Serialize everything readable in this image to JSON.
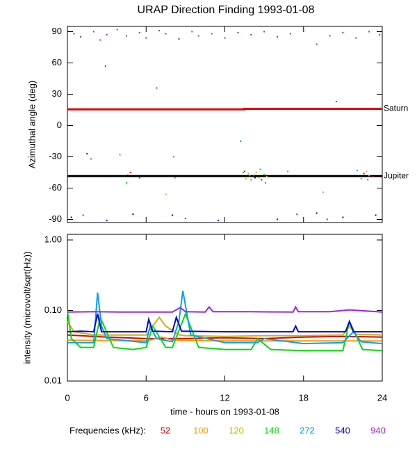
{
  "title": "URAP Direction Finding  1993-01-08",
  "chart_data": [
    {
      "type": "scatter",
      "ylabel": "Azimuthal angle (deg)",
      "xlim": [
        0,
        24
      ],
      "xticks": [
        0,
        6,
        12,
        18,
        24
      ],
      "ylim": [
        -93,
        95
      ],
      "yticks": [
        -90,
        -60,
        -30,
        0,
        30,
        60,
        90
      ],
      "reference_lines": [
        {
          "name": "Saturn",
          "color": "#e00000",
          "x": [
            0,
            13.5,
            13.5,
            24
          ],
          "values": [
            15.5,
            15.5,
            16,
            16
          ]
        },
        {
          "name": "Jupiter",
          "color": "#000000",
          "x": [
            0,
            24
          ],
          "values": [
            -48.5,
            -48.5
          ]
        }
      ],
      "series": [
        {
          "color": "#e00000",
          "x": [
            4.8,
            5.5,
            13.5,
            14.2,
            14.8,
            22.6,
            23.3
          ],
          "values": [
            -45,
            -50,
            -44,
            -48,
            -52,
            -46,
            -49
          ]
        },
        {
          "color": "#ff9900",
          "x": [
            7.5,
            13.8,
            14.6,
            19.5,
            23
          ],
          "values": [
            -66,
            -46,
            -50,
            -64,
            -48
          ]
        },
        {
          "color": "#d4b000",
          "x": [
            4.6,
            13.6,
            14.4,
            15.2,
            22.8
          ],
          "values": [
            -47,
            -51,
            -45,
            -49,
            -44
          ]
        },
        {
          "color": "#00e000",
          "x": [
            1.8,
            4.0,
            4.5,
            8.2,
            13.4,
            14,
            15,
            16.8,
            22.4
          ],
          "values": [
            -32,
            -28,
            -55,
            -50,
            -45,
            -52,
            -47,
            -44,
            -51
          ]
        },
        {
          "color": "#00a0ff",
          "x": [
            8.1,
            13.2,
            13.9,
            14.7,
            15.1,
            22.1,
            22.9
          ],
          "values": [
            -30,
            -15,
            -48,
            -42,
            -55,
            -43,
            -52
          ]
        },
        {
          "color": "#0000e0",
          "x": [
            0.3,
            1.5,
            5.0,
            8.0,
            11.5,
            14.3,
            19.0,
            21.0,
            23.5,
            3.0,
            16.0
          ],
          "values": [
            -88,
            -27,
            -85,
            -86,
            -91,
            -50,
            -84,
            -88,
            -86,
            -91,
            -90
          ]
        },
        {
          "color": "#a020f0",
          "x": [
            0.5,
            1,
            2,
            2.5,
            3,
            3.8,
            4.5,
            5.5,
            6,
            7,
            7.5,
            8.5,
            9.5,
            10,
            11,
            12,
            13,
            14,
            15,
            16,
            17,
            18,
            19,
            20,
            21,
            22,
            23,
            23.8,
            2.9,
            6.8,
            20.5,
            1.2,
            9,
            17.5,
            19.8
          ],
          "values": [
            88,
            85,
            90,
            82,
            87,
            92,
            86,
            89,
            84,
            91,
            88,
            83,
            90,
            86,
            88,
            84,
            89,
            87,
            90,
            85,
            88,
            91,
            78,
            86,
            89,
            84,
            90,
            87,
            57,
            36,
            23,
            -86,
            -89,
            -85,
            -90
          ]
        }
      ]
    },
    {
      "type": "line",
      "ylabel": "intensity (microvolt/sqrt(Hz))",
      "xlabel": "time - hours on 1993-01-08",
      "log_y": true,
      "xlim": [
        0,
        24
      ],
      "xticks": [
        0,
        6,
        12,
        18,
        24
      ],
      "ylim": [
        0.01,
        1.2
      ],
      "yticks": [
        {
          "value": 0.01,
          "label": "0.01"
        },
        {
          "value": 0.1,
          "label": "0.10"
        },
        {
          "value": 1,
          "label": "1.00"
        }
      ],
      "legend_title": "Frequencies (kHz):",
      "series": [
        {
          "name": "52",
          "color": "#e00000",
          "x": [
            0,
            3,
            6,
            9,
            12,
            15,
            18,
            21,
            24
          ],
          "values": [
            0.045,
            0.042,
            0.04,
            0.04,
            0.041,
            0.04,
            0.042,
            0.043,
            0.042
          ]
        },
        {
          "name": "100",
          "color": "#ff9900",
          "x": [
            0,
            6,
            7.2,
            8,
            12,
            18,
            24
          ],
          "values": [
            0.038,
            0.037,
            0.042,
            0.038,
            0.037,
            0.037,
            0.037
          ]
        },
        {
          "name": "120",
          "color": "#d4b000",
          "x": [
            0,
            0.5,
            2,
            4,
            6,
            7,
            7.5,
            8.5,
            9,
            12,
            15,
            18,
            21,
            21.5,
            22,
            24
          ],
          "values": [
            0.07,
            0.05,
            0.045,
            0.045,
            0.045,
            0.08,
            0.06,
            0.045,
            0.044,
            0.043,
            0.044,
            0.044,
            0.045,
            0.06,
            0.046,
            0.045
          ]
        },
        {
          "name": "148",
          "color": "#00e000",
          "x": [
            0,
            0.3,
            1,
            2,
            2.5,
            3.5,
            5,
            6,
            6.5,
            7.5,
            8,
            9,
            10,
            12,
            14,
            14.5,
            15.5,
            18,
            21,
            21.5,
            22.5,
            24
          ],
          "values": [
            0.1,
            0.04,
            0.03,
            0.03,
            0.08,
            0.03,
            0.028,
            0.03,
            0.06,
            0.03,
            0.03,
            0.09,
            0.03,
            0.028,
            0.028,
            0.04,
            0.028,
            0.027,
            0.027,
            0.07,
            0.028,
            0.027
          ]
        },
        {
          "name": "272",
          "color": "#00a0ff",
          "x": [
            0,
            2,
            2.3,
            2.6,
            3,
            6,
            6.3,
            6.8,
            8,
            8.5,
            8.8,
            9.4,
            12,
            14.5,
            15,
            18,
            21,
            21.8,
            22.4,
            24
          ],
          "values": [
            0.035,
            0.035,
            0.18,
            0.06,
            0.04,
            0.035,
            0.06,
            0.04,
            0.036,
            0.07,
            0.19,
            0.045,
            0.035,
            0.035,
            0.04,
            0.034,
            0.035,
            0.05,
            0.036,
            0.034
          ]
        },
        {
          "name": "540",
          "color": "#0000e0",
          "x": [
            0,
            1,
            2,
            2.3,
            2.6,
            4,
            6,
            6.2,
            6.5,
            8,
            8.3,
            8.7,
            12,
            17.2,
            17.4,
            17.6,
            21.2,
            21.5,
            21.8,
            24
          ],
          "values": [
            0.05,
            0.051,
            0.05,
            0.09,
            0.05,
            0.05,
            0.05,
            0.075,
            0.051,
            0.05,
            0.08,
            0.051,
            0.05,
            0.05,
            0.06,
            0.05,
            0.05,
            0.07,
            0.05,
            0.05
          ]
        },
        {
          "name": "940",
          "color": "#a020f0",
          "x": [
            0,
            2,
            4,
            6,
            8,
            8.6,
            9,
            10.5,
            10.8,
            11.1,
            14,
            17.2,
            17.4,
            17.6,
            20,
            21.5,
            24
          ],
          "values": [
            0.095,
            0.096,
            0.095,
            0.095,
            0.095,
            0.11,
            0.096,
            0.095,
            0.112,
            0.096,
            0.096,
            0.095,
            0.112,
            0.096,
            0.096,
            0.102,
            0.095
          ]
        }
      ]
    }
  ]
}
